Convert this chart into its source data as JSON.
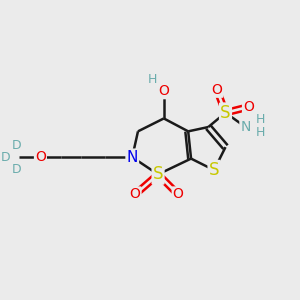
{
  "bg_color": "#ebebeb",
  "bond_color": "#1a1a1a",
  "bond_width": 1.8,
  "atom_colors": {
    "C": "#1a1a1a",
    "H": "#6aacac",
    "N": "#0000ee",
    "O": "#ee0000",
    "S": "#c8c800",
    "D": "#6aacac"
  },
  "font_size": 10
}
